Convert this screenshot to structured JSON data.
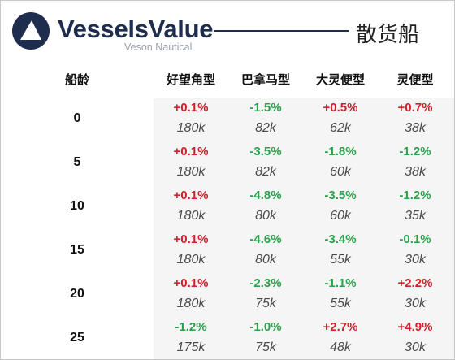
{
  "header": {
    "brand": "VesselsValue",
    "brand_sub": "Veson Nautical",
    "category": "散货船",
    "logo_icon": "vesselsvalue-logo-icon"
  },
  "table": {
    "age_header": "船龄",
    "columns": [
      "好望角型",
      "巴拿马型",
      "大灵便型",
      "灵便型"
    ],
    "rows": [
      {
        "age": "0",
        "changes": [
          "+0.1%",
          "-1.5%",
          "+0.5%",
          "+0.7%"
        ],
        "values": [
          "180k",
          "82k",
          "62k",
          "38k"
        ]
      },
      {
        "age": "5",
        "changes": [
          "+0.1%",
          "-3.5%",
          "-1.8%",
          "-1.2%"
        ],
        "values": [
          "180k",
          "82k",
          "60k",
          "38k"
        ]
      },
      {
        "age": "10",
        "changes": [
          "+0.1%",
          "-4.8%",
          "-3.5%",
          "-1.2%"
        ],
        "values": [
          "180k",
          "80k",
          "60k",
          "35k"
        ]
      },
      {
        "age": "15",
        "changes": [
          "+0.1%",
          "-4.6%",
          "-3.4%",
          "-0.1%"
        ],
        "values": [
          "180k",
          "80k",
          "55k",
          "30k"
        ]
      },
      {
        "age": "20",
        "changes": [
          "+0.1%",
          "-2.3%",
          "-1.1%",
          "+2.2%"
        ],
        "values": [
          "180k",
          "75k",
          "55k",
          "30k"
        ]
      },
      {
        "age": "25",
        "changes": [
          "-1.2%",
          "-1.0%",
          "+2.7%",
          "+4.9%"
        ],
        "values": [
          "175k",
          "75k",
          "48k",
          "30k"
        ]
      }
    ],
    "colors": {
      "positive": "#d0202a",
      "negative": "#2aa14b",
      "brand": "#1e2d4e"
    }
  }
}
